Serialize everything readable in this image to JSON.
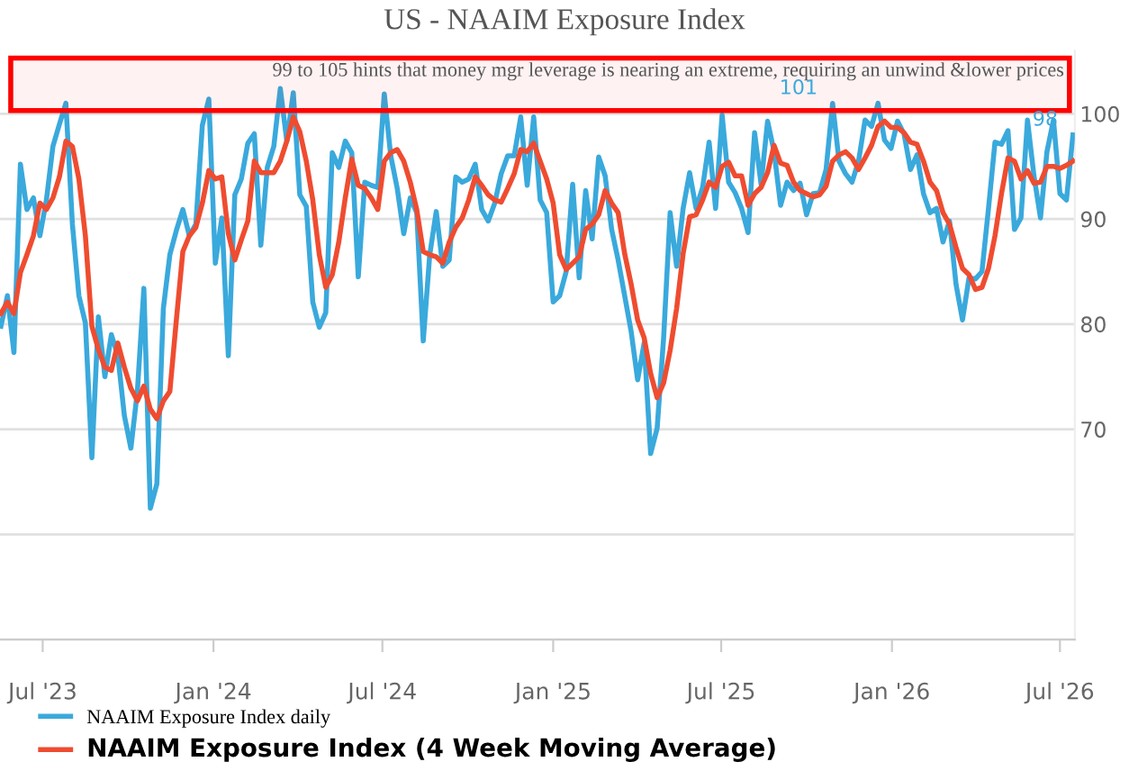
{
  "chart_data": {
    "type": "line",
    "title": "US - NAAIM Exposure Index",
    "x": [
      "2023-05-17",
      "2023-05-24",
      "2023-05-31",
      "2023-06-07",
      "2023-06-14",
      "2023-06-21",
      "2023-06-28",
      "2023-07-05",
      "2023-07-12",
      "2023-07-19",
      "2023-07-26",
      "2023-08-02",
      "2023-08-09",
      "2023-08-16",
      "2023-08-23",
      "2023-08-30",
      "2023-09-06",
      "2023-09-13",
      "2023-09-20",
      "2023-09-27",
      "2023-10-04",
      "2023-10-11",
      "2023-10-18",
      "2023-10-25",
      "2023-11-01",
      "2023-11-08",
      "2023-11-15",
      "2023-11-22",
      "2023-11-29",
      "2023-12-06",
      "2023-12-13",
      "2023-12-20",
      "2023-12-27",
      "2024-01-03",
      "2024-01-10",
      "2024-01-17",
      "2024-01-24",
      "2024-01-31",
      "2024-02-07",
      "2024-02-14",
      "2024-02-21",
      "2024-02-28",
      "2024-03-06",
      "2024-03-13",
      "2024-03-20",
      "2024-03-27",
      "2024-04-03",
      "2024-04-10",
      "2024-04-17",
      "2024-04-24",
      "2024-05-01",
      "2024-05-08",
      "2024-05-15",
      "2024-05-22",
      "2024-05-29",
      "2024-06-05",
      "2024-06-12",
      "2024-06-19",
      "2024-06-26",
      "2024-07-03",
      "2024-07-10",
      "2024-07-17",
      "2024-07-24",
      "2024-07-31",
      "2024-08-07",
      "2024-08-14",
      "2024-08-21",
      "2024-08-28",
      "2024-09-04",
      "2024-09-11",
      "2024-09-18",
      "2024-09-25",
      "2024-10-02",
      "2024-10-09",
      "2024-10-16",
      "2024-10-23",
      "2024-10-30",
      "2024-11-06",
      "2024-11-13",
      "2024-11-20",
      "2024-11-27",
      "2024-12-04",
      "2024-12-11",
      "2024-12-18",
      "2024-12-25",
      "2025-01-01",
      "2025-01-08",
      "2025-01-15",
      "2025-01-22",
      "2025-01-29",
      "2025-02-05",
      "2025-02-12",
      "2025-02-19",
      "2025-02-26",
      "2025-03-05",
      "2025-03-12",
      "2025-03-19",
      "2025-03-26",
      "2025-04-02",
      "2025-04-09",
      "2025-04-16",
      "2025-04-23",
      "2025-04-30",
      "2025-05-07",
      "2025-05-14",
      "2025-05-21",
      "2025-05-28",
      "2025-06-04",
      "2025-06-11",
      "2025-06-18",
      "2025-06-25",
      "2025-07-02",
      "2025-07-09",
      "2025-07-16",
      "2025-07-23",
      "2025-07-30",
      "2025-08-06",
      "2025-08-13",
      "2025-08-20",
      "2025-08-27",
      "2025-09-03",
      "2025-09-10",
      "2025-09-17",
      "2025-09-24",
      "2025-10-01",
      "2025-10-08",
      "2025-10-15",
      "2025-10-22",
      "2025-10-29",
      "2025-11-05",
      "2025-11-12",
      "2025-11-19",
      "2025-11-26",
      "2025-12-03",
      "2025-12-10",
      "2025-12-17",
      "2025-12-24",
      "2025-12-31",
      "2026-01-07",
      "2026-01-14",
      "2026-01-21",
      "2026-01-28",
      "2026-02-04",
      "2026-02-11",
      "2026-02-18",
      "2026-02-25",
      "2026-03-04",
      "2026-03-11",
      "2026-03-18",
      "2026-03-25",
      "2026-04-01",
      "2026-04-08",
      "2026-04-15",
      "2026-04-22",
      "2026-04-29",
      "2026-05-06",
      "2026-05-13",
      "2026-05-20",
      "2026-05-27",
      "2026-06-03",
      "2026-06-10",
      "2026-06-17",
      "2026-06-24",
      "2026-07-01",
      "2026-07-08",
      "2026-07-15"
    ],
    "series": [
      {
        "name": "NAAIM Exposure Index daily",
        "color": "#3aa9dc",
        "values": [
          79.8,
          82.7,
          77.3,
          95.2,
          90.9,
          92.0,
          88.4,
          91.8,
          96.9,
          99.0,
          101.0,
          89.5,
          82.7,
          80.1,
          67.3,
          80.7,
          75.0,
          79.0,
          77.0,
          71.3,
          68.2,
          73.6,
          83.4,
          62.5,
          64.8,
          81.5,
          86.6,
          88.9,
          90.9,
          88.4,
          89.5,
          98.9,
          101.4,
          85.8,
          90.1,
          77.0,
          92.3,
          93.8,
          97.2,
          98.1,
          87.5,
          94.9,
          96.9,
          102.4,
          97.4,
          102.0,
          92.3,
          91.2,
          82.1,
          79.7,
          81.1,
          96.3,
          94.9,
          97.4,
          96.3,
          84.5,
          93.5,
          93.2,
          93.0,
          101.9,
          96.0,
          92.9,
          88.6,
          92.0,
          90.6,
          78.4,
          86.6,
          90.7,
          85.5,
          86.1,
          94.0,
          93.5,
          93.8,
          95.2,
          90.9,
          89.8,
          91.5,
          94.3,
          96.0,
          96.0,
          99.7,
          93.2,
          99.7,
          91.8,
          90.6,
          82.1,
          82.7,
          85.0,
          93.3,
          84.4,
          92.7,
          88.1,
          95.9,
          94.1,
          89.0,
          86.1,
          82.7,
          79.3,
          74.7,
          78.2,
          67.7,
          70.1,
          78.7,
          90.6,
          85.5,
          91.0,
          94.4,
          91.0,
          93.0,
          97.3,
          91.0,
          99.9,
          93.5,
          92.5,
          91.0,
          88.7,
          98.2,
          93.3,
          99.3,
          96.4,
          91.3,
          93.5,
          92.7,
          93.4,
          90.4,
          92.4,
          92.5,
          94.7,
          101,
          95.5,
          94.3,
          93.5,
          95.5,
          99.4,
          98.8,
          101.0,
          97.5,
          96.7,
          99.3,
          98.1,
          94.7,
          96.1,
          92.4,
          90.6,
          91.0,
          87.8,
          89.8,
          83.8,
          80.4,
          84.4,
          84.3,
          85.0,
          91.0,
          97.3,
          97.1,
          98.4,
          89.0,
          90.1,
          99.4,
          94.1,
          90.1,
          96.4,
          99.4,
          92.4,
          91.8,
          98
        ]
      },
      {
        "name": "NAAIM Exposure Index (4 Week Moving Average)",
        "color": "#ef4c30",
        "values": [
          81.0,
          82.1,
          81.0,
          84.9,
          86.6,
          88.4,
          91.5,
          90.9,
          92.0,
          94.0,
          97.4,
          96.9,
          93.8,
          88.4,
          79.8,
          77.6,
          75.9,
          75.6,
          78.2,
          75.9,
          73.9,
          72.7,
          74.1,
          71.9,
          71.0,
          72.7,
          73.6,
          80.4,
          86.9,
          88.4,
          89.2,
          91.5,
          94.6,
          93.8,
          94.0,
          88.6,
          86.1,
          88.0,
          89.8,
          95.5,
          94.4,
          94.4,
          94.4,
          95.5,
          97.4,
          99.7,
          98.3,
          95.5,
          91.8,
          86.6,
          83.5,
          84.7,
          87.8,
          92.0,
          95.7,
          93.2,
          92.9,
          92.0,
          90.9,
          95.5,
          96.3,
          96.6,
          95.5,
          93.5,
          90.9,
          86.9,
          86.6,
          86.4,
          85.8,
          87.8,
          89.2,
          90.1,
          91.8,
          94.0,
          93.2,
          92.3,
          91.8,
          91.6,
          92.9,
          94.3,
          96.6,
          96.4,
          97.2,
          95.5,
          93.8,
          91.5,
          86.6,
          85.2,
          85.8,
          86.4,
          89.0,
          89.5,
          90.4,
          92.7,
          91.5,
          90.6,
          86.7,
          83.8,
          80.4,
          78.7,
          75.3,
          73.0,
          74.4,
          77.5,
          81.5,
          86.7,
          90.2,
          90.4,
          91.8,
          93.5,
          93.0,
          95.0,
          95.4,
          94.1,
          94.1,
          91.3,
          92.4,
          93.0,
          94.4,
          97.0,
          95.3,
          95.1,
          93.5,
          92.7,
          92.4,
          92.1,
          92.3,
          93.1,
          95.5,
          96.1,
          96.4,
          95.8,
          94.7,
          95.8,
          97.0,
          98.8,
          99.3,
          98.7,
          98.7,
          98.2,
          97.3,
          97.1,
          95.5,
          93.5,
          92.7,
          90.6,
          89.5,
          87.3,
          85.3,
          84.7,
          83.3,
          83.5,
          85.3,
          88.4,
          92.4,
          95.8,
          95.5,
          93.8,
          94.6,
          93.4,
          93.5,
          95.0,
          95.0,
          94.8,
          95.1,
          95.5
        ]
      }
    ],
    "xlim": [
      "2023-05-16",
      "2026-07-17"
    ],
    "xticks": [
      {
        "value": "2023-07-01",
        "label": "Jul '23"
      },
      {
        "value": "2024-01-01",
        "label": "Jan '24"
      },
      {
        "value": "2024-07-01",
        "label": "Jul '24"
      },
      {
        "value": "2025-01-01",
        "label": "Jan '25"
      },
      {
        "value": "2025-07-01",
        "label": "Jul '25"
      },
      {
        "value": "2026-01-01",
        "label": "Jan '26"
      },
      {
        "value": "2026-07-01",
        "label": "Jul '26"
      }
    ],
    "ylim": [
      50,
      106
    ],
    "yticks": [
      {
        "value": 50,
        "label": null
      },
      {
        "value": 60,
        "label": null
      },
      70,
      80,
      90,
      100
    ],
    "grid": "y",
    "legend": "bottom left",
    "bands": [
      {
        "axis": "y",
        "from": 100.3,
        "to": 105.3,
        "label": "99 to 105 hints that money mgr leverage is nearing an extreme, requiring an unwind &lower prices",
        "color": "#ff0000"
      }
    ],
    "annotations": [
      {
        "text": "101",
        "x": "2025-10-29",
        "y": 101
      },
      {
        "text": "98",
        "x": "2026-07-15",
        "y": 98
      }
    ]
  }
}
